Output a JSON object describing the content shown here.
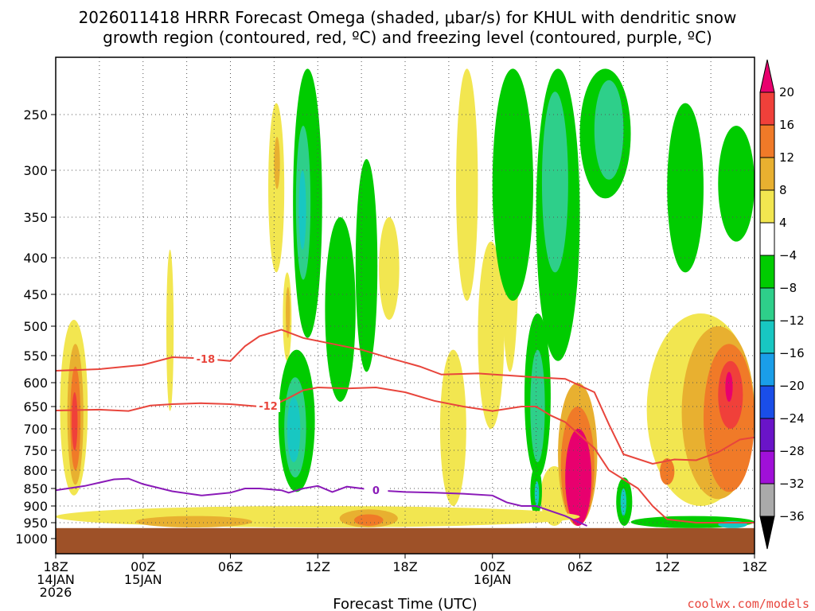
{
  "chart_data": {
    "type": "heatmap",
    "title_line1": "2026011418 HRRR Forecast Omega (shaded, μbar/s) for KHUL with dendritic snow",
    "title_line2": "growth region (contoured, red, ºC) and freezing level (contoured, purple, ºC)",
    "xlabel": "Forecast Time (UTC)",
    "watermark": "coolwx.com/models",
    "x_ticks": [
      {
        "hour": 0,
        "lines": [
          "18Z",
          "14JAN",
          "2026"
        ]
      },
      {
        "hour": 6,
        "lines": [
          "00Z",
          "15JAN"
        ]
      },
      {
        "hour": 12,
        "lines": [
          "06Z"
        ]
      },
      {
        "hour": 18,
        "lines": [
          "12Z"
        ]
      },
      {
        "hour": 24,
        "lines": [
          "18Z"
        ]
      },
      {
        "hour": 30,
        "lines": [
          "00Z",
          "16JAN"
        ]
      },
      {
        "hour": 36,
        "lines": [
          "06Z"
        ]
      },
      {
        "hour": 42,
        "lines": [
          "12Z"
        ]
      },
      {
        "hour": 48,
        "lines": [
          "18Z"
        ]
      }
    ],
    "x_range_hours": [
      0,
      48
    ],
    "y_axis": "pressure (mb), log-like scale, inverted",
    "y_ticks": [
      250,
      300,
      350,
      400,
      450,
      500,
      550,
      600,
      650,
      700,
      750,
      800,
      850,
      900,
      950,
      1000
    ],
    "y_range": [
      200,
      1000
    ],
    "surface_pressure": 967,
    "grid": "dotted, both axes",
    "colorbar": {
      "placement": "right",
      "labels": [
        "20",
        "16",
        "12",
        "8",
        "4",
        "−4",
        "−8",
        "−12",
        "−16",
        "−20",
        "−24",
        "−28",
        "−32",
        "−36"
      ],
      "colors_top_to_bottom": [
        "#e8006e",
        "#f0403a",
        "#f07a28",
        "#e8b030",
        "#f2e650",
        "#ffffff",
        "#00cc00",
        "#2ecf8a",
        "#18c7c2",
        "#1a9ee8",
        "#1a4ee8",
        "#6a14c8",
        "#a010d8",
        "#aaaaaa",
        "#000000"
      ]
    },
    "shaded_regions": [
      {
        "color": "#f2e650",
        "value": 4,
        "hours": [
          0.3,
          2.2
        ],
        "p": [
          490,
          870
        ]
      },
      {
        "color": "#e8b030",
        "value": 8,
        "hours": [
          0.8,
          1.9
        ],
        "p": [
          530,
          840
        ]
      },
      {
        "color": "#f07a28",
        "value": 12,
        "hours": [
          1.0,
          1.7
        ],
        "p": [
          570,
          800
        ]
      },
      {
        "color": "#f0403a",
        "value": 16,
        "hours": [
          1.1,
          1.5
        ],
        "p": [
          620,
          750
        ]
      },
      {
        "color": "#f2e650",
        "value": 4,
        "hours": [
          7.6,
          8.1
        ],
        "p": [
          390,
          660
        ]
      },
      {
        "color": "#f2e650",
        "value": 4,
        "hours": [
          14.6,
          15.7
        ],
        "p": [
          240,
          420
        ]
      },
      {
        "color": "#e8b030",
        "value": 8,
        "hours": [
          15.0,
          15.4
        ],
        "p": [
          270,
          320
        ]
      },
      {
        "color": "#f2e650",
        "value": 4,
        "hours": [
          15.6,
          16.2
        ],
        "p": [
          420,
          560
        ]
      },
      {
        "color": "#e8b030",
        "value": 8,
        "hours": [
          15.8,
          16.1
        ],
        "p": [
          440,
          520
        ]
      },
      {
        "color": "#00cc00",
        "value": -4,
        "hours": [
          16.3,
          18.3
        ],
        "p": [
          210,
          520
        ]
      },
      {
        "color": "#2ecf8a",
        "value": -8,
        "hours": [
          16.5,
          17.5
        ],
        "p": [
          260,
          430
        ]
      },
      {
        "color": "#18c7c2",
        "value": -12,
        "hours": [
          16.7,
          17.2
        ],
        "p": [
          300,
          390
        ]
      },
      {
        "color": "#00cc00",
        "value": -4,
        "hours": [
          15.3,
          17.8
        ],
        "p": [
          540,
          860
        ]
      },
      {
        "color": "#2ecf8a",
        "value": -8,
        "hours": [
          15.7,
          17.2
        ],
        "p": [
          590,
          820
        ]
      },
      {
        "color": "#18c7c2",
        "value": -12,
        "hours": [
          15.9,
          16.8
        ],
        "p": [
          630,
          780
        ]
      },
      {
        "color": "#00cc00",
        "value": -4,
        "hours": [
          18.5,
          20.6
        ],
        "p": [
          350,
          640
        ]
      },
      {
        "color": "#00cc00",
        "value": -4,
        "hours": [
          20.6,
          22.1
        ],
        "p": [
          290,
          580
        ]
      },
      {
        "color": "#f2e650",
        "value": 4,
        "hours": [
          22.2,
          23.6
        ],
        "p": [
          350,
          490
        ]
      },
      {
        "color": "#f2e650",
        "value": 4,
        "hours": [
          26.4,
          28.2
        ],
        "p": [
          540,
          900
        ]
      },
      {
        "color": "#f2e650",
        "value": 4,
        "hours": [
          27.5,
          29.0
        ],
        "p": [
          210,
          460
        ]
      },
      {
        "color": "#f2e650",
        "value": 4,
        "hours": [
          29.0,
          30.8
        ],
        "p": [
          380,
          700
        ]
      },
      {
        "color": "#f2e650",
        "value": 4,
        "hours": [
          30.6,
          31.8
        ],
        "p": [
          250,
          580
        ]
      },
      {
        "color": "#f07a28",
        "value": 12,
        "hours": [
          31.0,
          31.4
        ],
        "p": [
          270,
          340
        ]
      },
      {
        "color": "#00cc00",
        "value": -4,
        "hours": [
          30.0,
          32.8
        ],
        "p": [
          210,
          460
        ]
      },
      {
        "color": "#00cc00",
        "value": -4,
        "hours": [
          33.0,
          36.0
        ],
        "p": [
          210,
          560
        ]
      },
      {
        "color": "#2ecf8a",
        "value": -8,
        "hours": [
          33.4,
          35.2
        ],
        "p": [
          230,
          420
        ]
      },
      {
        "color": "#00cc00",
        "value": -4,
        "hours": [
          32.2,
          34.0
        ],
        "p": [
          480,
          820
        ]
      },
      {
        "color": "#2ecf8a",
        "value": -8,
        "hours": [
          32.6,
          33.6
        ],
        "p": [
          540,
          780
        ]
      },
      {
        "color": "#00cc00",
        "value": -4,
        "hours": [
          36.0,
          39.5
        ],
        "p": [
          210,
          330
        ]
      },
      {
        "color": "#2ecf8a",
        "value": -8,
        "hours": [
          37.0,
          39.0
        ],
        "p": [
          220,
          310
        ]
      },
      {
        "color": "#00cc00",
        "value": -4,
        "hours": [
          42.0,
          44.5
        ],
        "p": [
          240,
          420
        ]
      },
      {
        "color": "#00cc00",
        "value": -4,
        "hours": [
          45.5,
          48.0
        ],
        "p": [
          260,
          380
        ]
      },
      {
        "color": "#f2e650",
        "value": 4,
        "hours": [
          33.3,
          35.2
        ],
        "p": [
          790,
          960
        ]
      },
      {
        "color": "#00cc00",
        "value": -4,
        "hours": [
          32.6,
          33.4
        ],
        "p": [
          790,
          930
        ]
      },
      {
        "color": "#18c7c2",
        "value": -12,
        "hours": [
          32.9,
          33.2
        ],
        "p": [
          830,
          900
        ]
      },
      {
        "color": "#e8b030",
        "value": 8,
        "hours": [
          34.5,
          37.2
        ],
        "p": [
          600,
          960
        ]
      },
      {
        "color": "#f07a28",
        "value": 12,
        "hours": [
          34.7,
          37.0
        ],
        "p": [
          650,
          960
        ]
      },
      {
        "color": "#e8006e",
        "value": 20,
        "hours": [
          35.0,
          36.8
        ],
        "p": [
          700,
          960
        ]
      },
      {
        "color": "#00cc00",
        "value": -4,
        "hours": [
          38.5,
          39.6
        ],
        "p": [
          820,
          960
        ]
      },
      {
        "color": "#18c7c2",
        "value": -12,
        "hours": [
          38.8,
          39.2
        ],
        "p": [
          850,
          930
        ]
      },
      {
        "color": "#f2e650",
        "value": 4,
        "hours": [
          40.6,
          48.0
        ],
        "p": [
          480,
          900
        ]
      },
      {
        "color": "#e8b030",
        "value": 8,
        "hours": [
          43.0,
          48.0
        ],
        "p": [
          500,
          880
        ]
      },
      {
        "color": "#f07a28",
        "value": 12,
        "hours": [
          44.5,
          48.0
        ],
        "p": [
          530,
          860
        ]
      },
      {
        "color": "#f0403a",
        "value": 16,
        "hours": [
          45.5,
          47.2
        ],
        "p": [
          560,
          700
        ]
      },
      {
        "color": "#e8006e",
        "value": 20,
        "hours": [
          46.0,
          46.5
        ],
        "p": [
          580,
          640
        ]
      },
      {
        "color": "#f07a28",
        "value": 12,
        "hours": [
          41.5,
          42.5
        ],
        "p": [
          770,
          840
        ]
      },
      {
        "color": "#f2e650",
        "value": 4,
        "hours": [
          0.0,
          36.0
        ],
        "p": [
          900,
          965
        ]
      },
      {
        "color": "#e8b030",
        "value": 8,
        "hours": [
          5.5,
          13.5
        ],
        "p": [
          930,
          965
        ]
      },
      {
        "color": "#e8b030",
        "value": 8,
        "hours": [
          19.5,
          23.5
        ],
        "p": [
          910,
          965
        ]
      },
      {
        "color": "#f07a28",
        "value": 12,
        "hours": [
          20.5,
          22.5
        ],
        "p": [
          925,
          960
        ]
      },
      {
        "color": "#00cc00",
        "value": -4,
        "hours": [
          39.5,
          48.0
        ],
        "p": [
          930,
          967
        ]
      },
      {
        "color": "#18c7c2",
        "value": -12,
        "hours": [
          45.5,
          47.5
        ],
        "p": [
          945,
          967
        ]
      }
    ],
    "contours": [
      {
        "name": "-18",
        "color": "#e8453c",
        "label": "-18",
        "label_at": 10.3,
        "points": [
          [
            0,
            578
          ],
          [
            3,
            575
          ],
          [
            6,
            567
          ],
          [
            8,
            553
          ],
          [
            10,
            555
          ],
          [
            12,
            560
          ],
          [
            13,
            534
          ],
          [
            14,
            517
          ],
          [
            15.5,
            506
          ],
          [
            17,
            520
          ],
          [
            19,
            530
          ],
          [
            21,
            540
          ],
          [
            23,
            555
          ],
          [
            25,
            570
          ],
          [
            26.5,
            585
          ],
          [
            29,
            583
          ],
          [
            33,
            590
          ],
          [
            35,
            593
          ],
          [
            37,
            620
          ],
          [
            38,
            690
          ],
          [
            39,
            760
          ],
          [
            41,
            784
          ],
          [
            42.5,
            773
          ],
          [
            44,
            775
          ],
          [
            45.5,
            755
          ],
          [
            47,
            725
          ],
          [
            48,
            720
          ]
        ]
      },
      {
        "name": "-12",
        "color": "#e8453c",
        "label": "-12",
        "label_at": 14.6,
        "points": [
          [
            0,
            659
          ],
          [
            3,
            657
          ],
          [
            5,
            660
          ],
          [
            6.5,
            648
          ],
          [
            8,
            645
          ],
          [
            10,
            643
          ],
          [
            12,
            645
          ],
          [
            14,
            650
          ],
          [
            15,
            647
          ],
          [
            16,
            632
          ],
          [
            17,
            616
          ],
          [
            18,
            610
          ],
          [
            20,
            612
          ],
          [
            22,
            610
          ],
          [
            24,
            620
          ],
          [
            26,
            638
          ],
          [
            28,
            650
          ],
          [
            30,
            660
          ],
          [
            32,
            650
          ],
          [
            33,
            650
          ],
          [
            34,
            670
          ],
          [
            35,
            685
          ],
          [
            37,
            745
          ],
          [
            38,
            800
          ],
          [
            40,
            850
          ],
          [
            41,
            900
          ],
          [
            42,
            940
          ],
          [
            44,
            950
          ],
          [
            48,
            950
          ]
        ]
      },
      {
        "name": "0",
        "color": "#8a1ab8",
        "label": "0",
        "label_at": 22.0,
        "points": [
          [
            0,
            855
          ],
          [
            2,
            843
          ],
          [
            4,
            825
          ],
          [
            5,
            823
          ],
          [
            6,
            838
          ],
          [
            8,
            858
          ],
          [
            10,
            870
          ],
          [
            12,
            862
          ],
          [
            13,
            850
          ],
          [
            14,
            850
          ],
          [
            15.5,
            855
          ],
          [
            16,
            862
          ],
          [
            17,
            850
          ],
          [
            18,
            843
          ],
          [
            19,
            860
          ],
          [
            20,
            845
          ],
          [
            22,
            855
          ],
          [
            24,
            860
          ],
          [
            26,
            862
          ],
          [
            28,
            865
          ],
          [
            30,
            870
          ],
          [
            31,
            890
          ],
          [
            32,
            900
          ],
          [
            33,
            900
          ],
          [
            35,
            930
          ],
          [
            36.5,
            960
          ]
        ]
      }
    ]
  }
}
